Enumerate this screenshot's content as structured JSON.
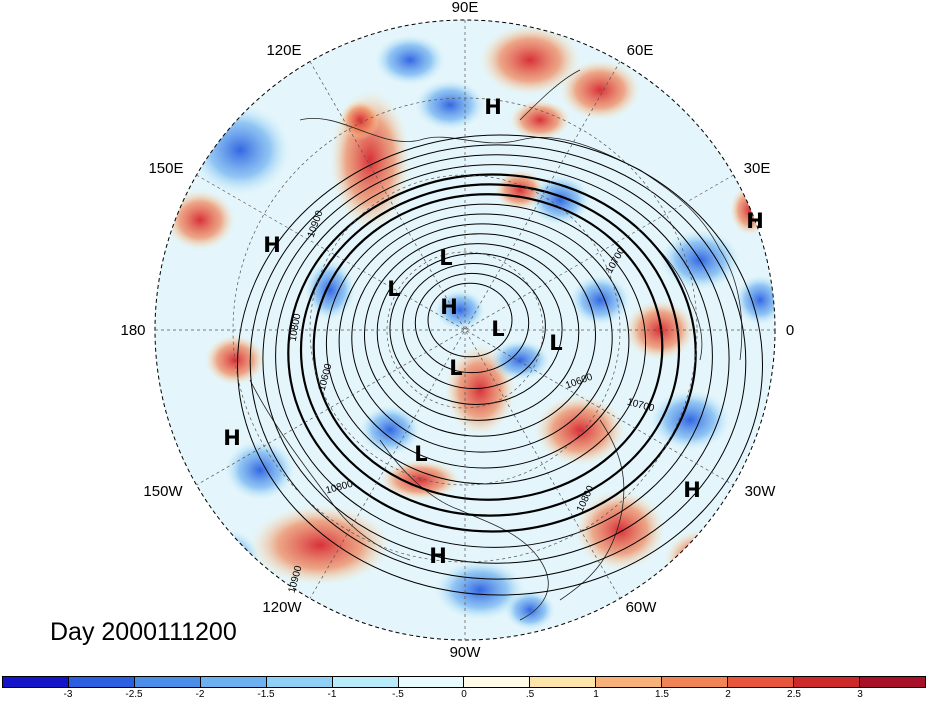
{
  "title": "Day 2000111200",
  "lon_labels": {
    "e90": "90E",
    "e60": "60E",
    "e30": "30E",
    "zero": "0",
    "w30": "30W",
    "w60": "60W",
    "w90": "90W",
    "w120": "120W",
    "w150": "150W",
    "d180": "180",
    "e150": "150E",
    "e120": "120E"
  },
  "pressure_marks": {
    "high": "H",
    "low": "L"
  },
  "contour_labels": [
    "10900",
    "10800",
    "10600",
    "10700",
    "10600",
    "10700",
    "10800",
    "10800",
    "10900"
  ],
  "colorbar": {
    "colors": [
      "#1414c8",
      "#2a5fe0",
      "#4a8ee8",
      "#6db0f0",
      "#8fd0f6",
      "#b8ecfa",
      "#e8fbff",
      "#fffbe6",
      "#fde4a8",
      "#f7b27a",
      "#f08456",
      "#e6553c",
      "#cc2a2a",
      "#a8102a"
    ],
    "ticks": [
      "-3",
      "-2.5",
      "-2",
      "-1.5",
      "-1",
      "-.5",
      "0",
      ".5",
      "1",
      "1.5",
      "2",
      "2.5",
      "3"
    ]
  }
}
